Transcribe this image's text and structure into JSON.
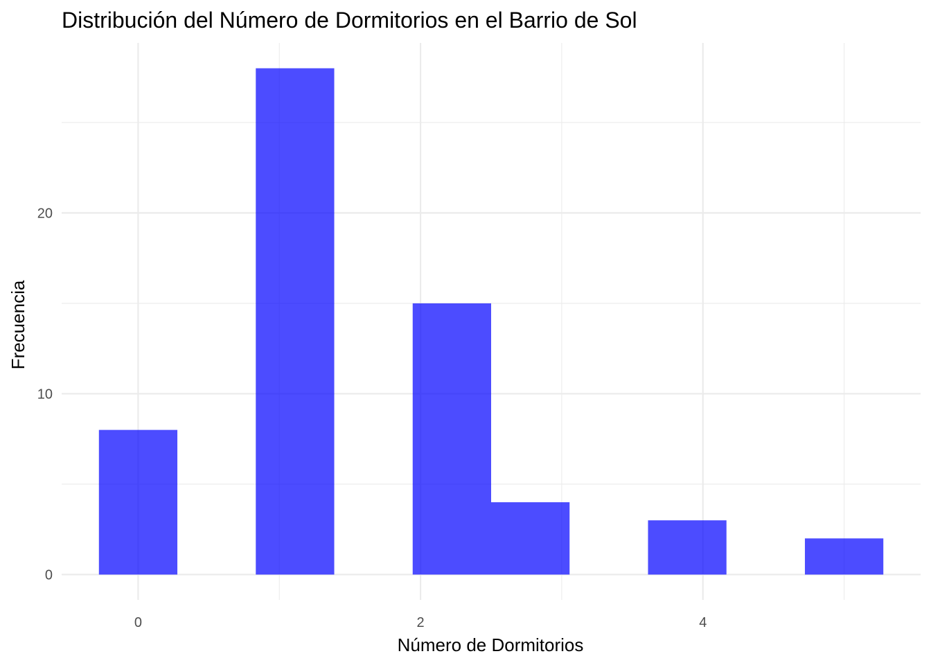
{
  "chart_data": {
    "type": "bar",
    "title": "Distribución del Número de Dormitorios en el Barrio de Sol",
    "xlabel": "Número de Dormitorios",
    "ylabel": "Frecuencia",
    "bin_width": 0.5556,
    "bins": [
      {
        "x_start": -0.2778,
        "x_end": 0.2778,
        "count": 8
      },
      {
        "x_start": 0.2778,
        "x_end": 0.8333,
        "count": 0
      },
      {
        "x_start": 0.8333,
        "x_end": 1.3889,
        "count": 28
      },
      {
        "x_start": 1.3889,
        "x_end": 1.9444,
        "count": 0
      },
      {
        "x_start": 1.9444,
        "x_end": 2.5,
        "count": 15
      },
      {
        "x_start": 2.5,
        "x_end": 3.0556,
        "count": 4
      },
      {
        "x_start": 3.0556,
        "x_end": 3.6111,
        "count": 0
      },
      {
        "x_start": 3.6111,
        "x_end": 4.1667,
        "count": 3
      },
      {
        "x_start": 4.1667,
        "x_end": 4.7222,
        "count": 0
      },
      {
        "x_start": 4.7222,
        "x_end": 5.2778,
        "count": 2
      }
    ],
    "xlim": [
      -0.5417,
      5.5417
    ],
    "ylim": [
      -1.4,
      29.4
    ],
    "x_ticks": [
      0,
      2,
      4
    ],
    "x_tick_labels": [
      "0",
      "2",
      "4"
    ],
    "x_minor_ticks": [
      1,
      3,
      5
    ],
    "y_ticks": [
      0,
      10,
      20
    ],
    "y_tick_labels": [
      "0",
      "10",
      "20"
    ],
    "y_minor_ticks": [
      5,
      15,
      25
    ],
    "grid": true,
    "bar_color": "#0000FF",
    "bar_opacity": 0.7
  }
}
